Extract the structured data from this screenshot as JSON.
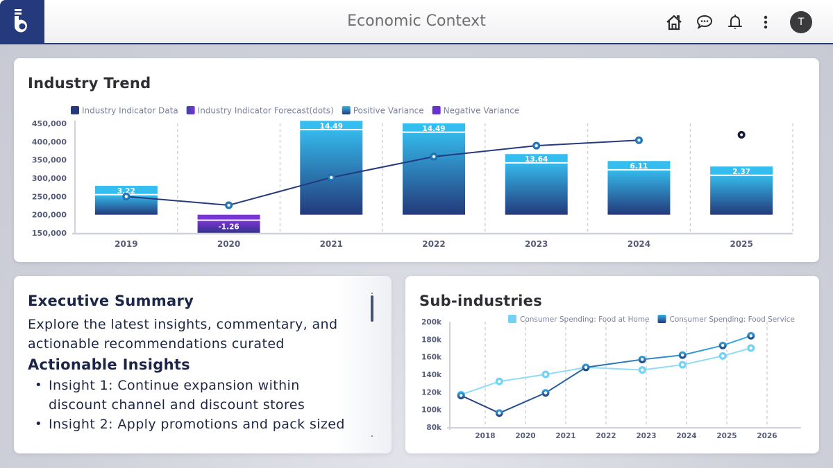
{
  "header": {
    "title": "Economic Context",
    "logo_letter": "b",
    "icons": [
      "home-icon",
      "chat-icon",
      "bell-icon",
      "more-vertical-icon"
    ],
    "avatar_initial": "T"
  },
  "colors": {
    "brand": "#243a7c",
    "positive_top": "#34bdef",
    "bar_gradient_top": "#35b8ea",
    "bar_gradient_bottom": "#233a7a",
    "negative_top": "#7b35d4",
    "negative_bottom": "#3b2f8c",
    "line": "#243a7c",
    "light_line": "#8fdcf6",
    "dark_line": "#1f6fb0"
  },
  "industry_trend": {
    "title": "Industry Trend",
    "legend": [
      {
        "label": "Industry Indicator Data",
        "swatch": "#243a7c"
      },
      {
        "label": "Industry Indicator Forecast(dots)",
        "swatch": "#6a32cc"
      },
      {
        "label": "Positive Variance",
        "swatch": "#2e9fd8"
      },
      {
        "label": "Negative Variance",
        "swatch": "#6a32cc"
      }
    ]
  },
  "executive_summary": {
    "title": "Executive Summary",
    "intro": "Explore the latest insights, commentary, and actionable recommendations curated",
    "insights_title": "Actionable Insights",
    "insights": [
      "Insight 1: Continue expansion within discount channel and discount stores",
      "Insight 2: Apply promotions and pack sized"
    ]
  },
  "sub_industries": {
    "title": "Sub-industries"
  },
  "chart_data": [
    {
      "type": "bar",
      "title": "Industry Trend",
      "categories": [
        "2019",
        "2020",
        "2021",
        "2022",
        "2023",
        "2024",
        "2025"
      ],
      "ylim": [
        150000,
        450000
      ],
      "yticks": [
        150000,
        200000,
        250000,
        300000,
        350000,
        400000,
        450000
      ],
      "ytick_labels": [
        "150,000",
        "200,000",
        "250,000",
        "300,000",
        "350,000",
        "400,000",
        "450,000"
      ],
      "grid": "vertical-dashed",
      "legend_position": "top-left",
      "series": [
        {
          "name": "Industry Indicator Data",
          "type": "line",
          "values": [
            250000,
            226000,
            302000,
            359000,
            389000,
            404000,
            null
          ]
        },
        {
          "name": "Industry Indicator Forecast(dots)",
          "type": "scatter",
          "values": [
            null,
            null,
            null,
            null,
            null,
            null,
            419000
          ]
        },
        {
          "name": "Variance bars",
          "type": "floating-bar",
          "base": [
            200000,
            200000,
            200000,
            200000,
            200000,
            200000,
            200000
          ],
          "top": [
            279000,
            150000,
            457000,
            450000,
            366000,
            347000,
            332000
          ],
          "split": [
            255000,
            185000,
            433000,
            426000,
            342000,
            323000,
            308000
          ],
          "variance_labels": [
            "3.22",
            "-1.26",
            "14.49",
            "14.49",
            "13.64",
            "6.11",
            "2.37"
          ],
          "sign": [
            "positive",
            "negative",
            "positive",
            "positive",
            "positive",
            "positive",
            "positive"
          ]
        }
      ]
    },
    {
      "type": "line",
      "title": "Sub-industries",
      "x_tick_labels": [
        "2018",
        "2020",
        "2021",
        "2022",
        "2023",
        "2024",
        "2025",
        "2026"
      ],
      "ylim": [
        80000,
        200000
      ],
      "yticks": [
        80000,
        100000,
        120000,
        140000,
        160000,
        180000,
        200000
      ],
      "ytick_labels": [
        "80k",
        "100k",
        "120k",
        "140k",
        "160k",
        "180k",
        "200k"
      ],
      "grid": "vertical-dashed",
      "legend_position": "top-center",
      "x": [
        2017.4,
        2018.7,
        2020.5,
        2021.5,
        2022.9,
        2023.9,
        2024.9,
        2025.6
      ],
      "series": [
        {
          "name": "Consumer Spending: Food at Home",
          "color": "#8fdcf6",
          "values": [
            117000,
            132000,
            140000,
            148000,
            145000,
            151000,
            161000,
            170000
          ]
        },
        {
          "name": "Consumer Spending: Food Service",
          "color": "#1f6fb0",
          "values": [
            116000,
            96000,
            119000,
            148000,
            157000,
            162000,
            173000,
            184000
          ]
        }
      ]
    }
  ]
}
